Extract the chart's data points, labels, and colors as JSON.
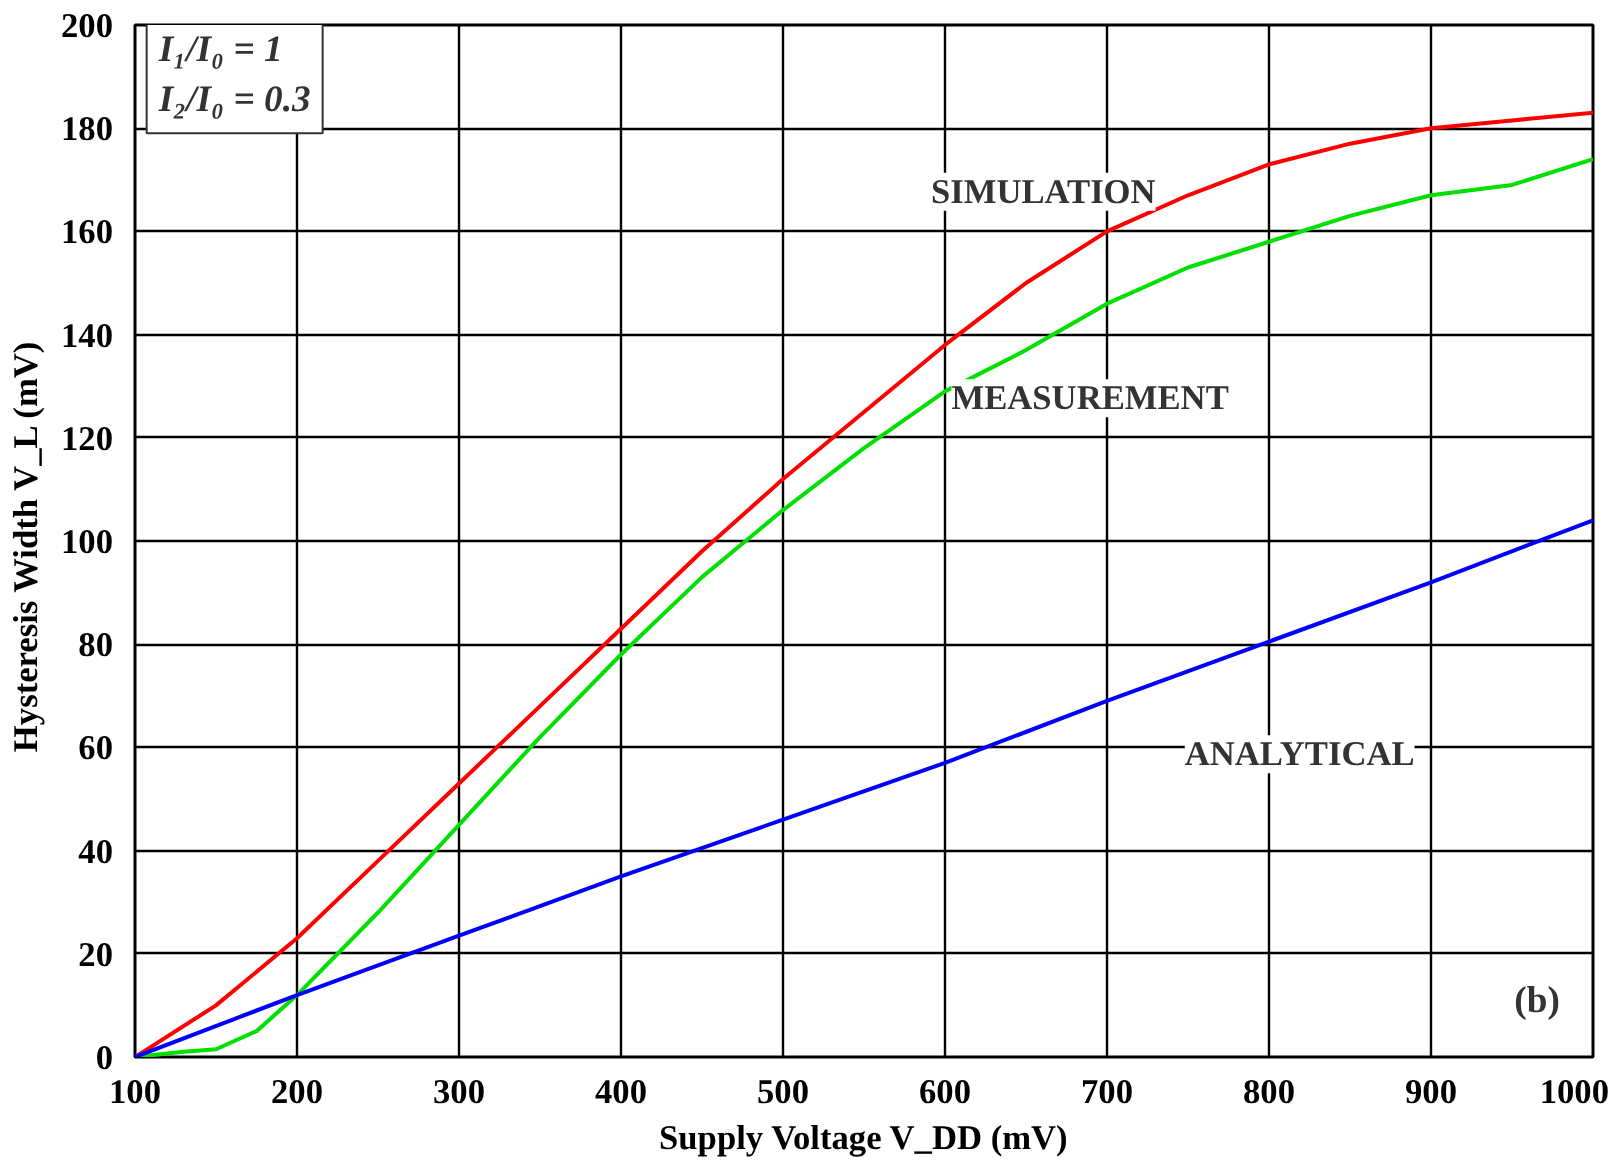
{
  "chart_data": {
    "type": "line",
    "xlabel": "Supply Voltage V_DD (mV)",
    "ylabel": "Hysteresis Width V_L  (mV)",
    "xlim": [
      100,
      1000
    ],
    "xticks": [
      100,
      200,
      300,
      400,
      500,
      600,
      700,
      800,
      900,
      1000
    ],
    "ylim": [
      0,
      200
    ],
    "yticks": [
      0,
      20,
      40,
      60,
      80,
      100,
      120,
      140,
      160,
      180,
      200
    ],
    "grid": true,
    "marker": "none",
    "line_style": "solid",
    "series": [
      {
        "name": "SIMULATION",
        "color": "#ff0000",
        "x": [
          100,
          150,
          200,
          250,
          300,
          350,
          400,
          450,
          500,
          550,
          600,
          650,
          700,
          750,
          800,
          850,
          900,
          950,
          1000
        ],
        "values": [
          0,
          10,
          23,
          38,
          53,
          68,
          83,
          98,
          112,
          125,
          138,
          150,
          160,
          167,
          173,
          177,
          180,
          181.5,
          183
        ]
      },
      {
        "name": "MEASUREMENT",
        "color": "#00e000",
        "x": [
          100,
          130,
          150,
          175,
          200,
          250,
          300,
          350,
          400,
          450,
          500,
          550,
          600,
          650,
          700,
          750,
          800,
          850,
          900,
          950,
          1000
        ],
        "values": [
          0,
          1,
          1.5,
          5,
          12,
          28,
          45,
          62,
          78,
          93,
          106,
          118,
          129,
          137,
          146,
          153,
          158,
          163,
          167,
          169,
          174
        ]
      },
      {
        "name": "ANALYTICAL",
        "color": "#0000ff",
        "x": [
          100,
          200,
          300,
          400,
          500,
          600,
          700,
          800,
          900,
          1000
        ],
        "values": [
          0,
          12,
          23.5,
          35,
          46,
          57,
          69,
          80.5,
          92,
          104
        ]
      }
    ],
    "annotations": [
      "I₁/I₀ = 1\nI₂/I₀ = 0.3",
      "(b)"
    ]
  }
}
